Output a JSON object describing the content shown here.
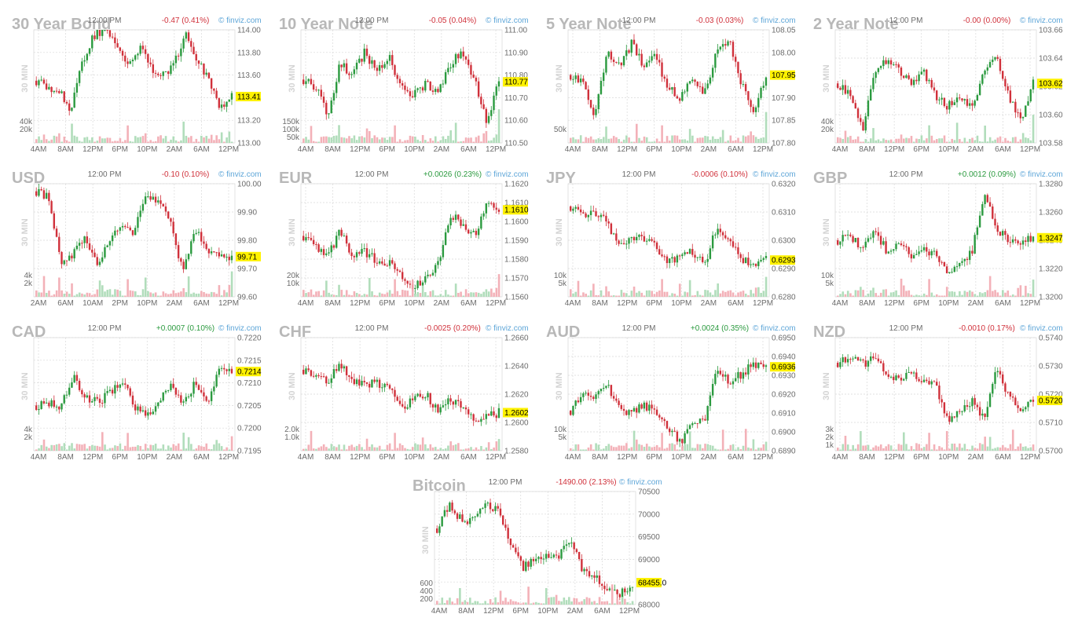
{
  "colors": {
    "up": "#2b9a3f",
    "down": "#d0313b",
    "price_bg": "#fff200",
    "grid": "#d9d9d9",
    "vol_up": "#a9d9b4",
    "vol_down": "#f2a9b0",
    "brand": "#5ea6d8"
  },
  "chart_data": [
    {
      "type": "candlestick",
      "title": "30 Year Bond",
      "side_label": "30 MIN",
      "time_label": "12:00 PM",
      "change": "-0.47 (0.41%)",
      "change_dir": "down",
      "price": "113.41",
      "last": 113.41,
      "brand": "© finviz.com",
      "yticks": [
        "114.00",
        "113.80",
        "113.60",
        "113.40",
        "113.20",
        "113.00"
      ],
      "ylim": [
        113.0,
        114.0
      ],
      "vol_ticks": [
        "40k",
        "20k"
      ],
      "vol_tick_rows": [
        0,
        1
      ],
      "xticks": [
        "4AM",
        "8AM",
        "12PM",
        "6PM",
        "10PM",
        "2AM",
        "6AM",
        "12PM"
      ],
      "path": [
        113.55,
        113.5,
        113.45,
        113.3,
        113.7,
        113.95,
        114.0,
        113.85,
        113.7,
        113.85,
        113.65,
        113.6,
        113.7,
        113.95,
        113.75,
        113.55,
        113.3,
        113.41
      ]
    },
    {
      "type": "candlestick",
      "title": "10 Year Note",
      "side_label": "30 MIN",
      "time_label": "12:00 PM",
      "change": "-0.05 (0.04%)",
      "change_dir": "down",
      "price": "110.77",
      "last": 110.77,
      "brand": "© finviz.com",
      "yticks": [
        "111.00",
        "110.90",
        "110.80",
        "110.70",
        "110.60",
        "110.50"
      ],
      "ylim": [
        110.5,
        111.0
      ],
      "vol_ticks": [
        "150k",
        "100k",
        "50k"
      ],
      "vol_tick_rows": [
        0,
        1,
        2
      ],
      "xticks": [
        "4AM",
        "8AM",
        "12PM",
        "6PM",
        "10PM",
        "2AM",
        "6AM",
        "12PM"
      ],
      "path": [
        110.78,
        110.75,
        110.62,
        110.85,
        110.8,
        110.9,
        110.82,
        110.88,
        110.74,
        110.72,
        110.76,
        110.73,
        110.85,
        110.9,
        110.78,
        110.6,
        110.77
      ]
    },
    {
      "type": "candlestick",
      "title": "5 Year Note",
      "side_label": "30 MIN",
      "time_label": "12:00 PM",
      "change": "-0.03 (0.03%)",
      "change_dir": "down",
      "price": "107.95",
      "last": 107.95,
      "brand": "© finviz.com",
      "yticks": [
        "108.05",
        "108.00",
        "107.95",
        "107.90",
        "107.85",
        "107.80"
      ],
      "ylim": [
        107.8,
        108.05
      ],
      "vol_ticks": [
        "50k"
      ],
      "vol_tick_rows": [
        1
      ],
      "xticks": [
        "4AM",
        "8AM",
        "12PM",
        "6PM",
        "10PM",
        "2AM",
        "6AM",
        "12PM"
      ],
      "path": [
        107.95,
        107.93,
        107.86,
        108.0,
        107.97,
        108.02,
        107.97,
        107.99,
        107.92,
        107.9,
        107.94,
        107.91,
        108.01,
        108.03,
        107.93,
        107.86,
        107.95
      ]
    },
    {
      "type": "candlestick",
      "title": "2 Year Note",
      "side_label": "30 MIN",
      "time_label": "12:00 PM",
      "change": "-0.00 (0.00%)",
      "change_dir": "down",
      "price": "103.62",
      "last": 103.62,
      "brand": "© finviz.com",
      "yticks": [
        "103.66",
        "103.64",
        "103.62",
        "103.60",
        "103.58"
      ],
      "ylim": [
        103.57,
        103.665
      ],
      "vol_ticks": [
        "40k",
        "20k"
      ],
      "vol_tick_rows": [
        0,
        1
      ],
      "xticks": [
        "4AM",
        "8AM",
        "12PM",
        "6PM",
        "10PM",
        "2AM",
        "6AM",
        "12PM"
      ],
      "path": [
        103.62,
        103.61,
        103.58,
        103.63,
        103.64,
        103.63,
        103.62,
        103.63,
        103.61,
        103.6,
        103.61,
        103.6,
        103.63,
        103.64,
        103.61,
        103.59,
        103.62
      ]
    },
    {
      "type": "candlestick",
      "title": "USD",
      "side_label": "30 MIN",
      "time_label": "12:00 PM",
      "change": "-0.10 (0.10%)",
      "change_dir": "down",
      "price": "99.71",
      "last": 99.71,
      "brand": "© finviz.com",
      "yticks": [
        "100.00",
        "99.90",
        "99.80",
        "99.70",
        "99.60"
      ],
      "ylim": [
        99.55,
        100.0
      ],
      "vol_ticks": [
        "4k",
        "2k"
      ],
      "vol_tick_rows": [
        0,
        1
      ],
      "xticks": [
        "2AM",
        "6AM",
        "10AM",
        "2PM",
        "10PM",
        "2AM",
        "6AM",
        "12PM"
      ],
      "path": [
        99.97,
        99.95,
        99.68,
        99.72,
        99.8,
        99.66,
        99.78,
        99.84,
        99.8,
        99.97,
        99.92,
        99.86,
        99.64,
        99.82,
        99.74,
        99.72,
        99.71
      ]
    },
    {
      "type": "candlestick",
      "title": "EUR",
      "side_label": "30 MIN",
      "time_label": "12:00 PM",
      "change": "+0.0026 (0.23%)",
      "change_dir": "up",
      "price": "1.1610",
      "last": 1.161,
      "brand": "© finviz.com",
      "yticks": [
        "1.1620",
        "1.1610",
        "1.1600",
        "1.1590",
        "1.1580",
        "1.1570",
        "1.1560"
      ],
      "ylim": [
        1.156,
        1.1625
      ],
      "vol_ticks": [
        "20k",
        "10k"
      ],
      "vol_tick_rows": [
        0,
        1
      ],
      "xticks": [
        "4AM",
        "8AM",
        "12PM",
        "6PM",
        "10PM",
        "2AM",
        "6AM",
        "12PM"
      ],
      "path": [
        1.1595,
        1.1588,
        1.1583,
        1.1598,
        1.1582,
        1.1586,
        1.1581,
        1.158,
        1.1572,
        1.1565,
        1.1572,
        1.1578,
        1.1608,
        1.1602,
        1.1595,
        1.1612,
        1.161
      ]
    },
    {
      "type": "candlestick",
      "title": "JPY",
      "side_label": "30 MIN",
      "time_label": "12:00 PM",
      "change": "-0.0006 (0.10%)",
      "change_dir": "down",
      "price": "0.6293",
      "last": 0.6293,
      "brand": "© finviz.com",
      "yticks": [
        "0.6320",
        "0.6310",
        "0.6300",
        "0.6290",
        "0.6280"
      ],
      "ylim": [
        0.628,
        0.632
      ],
      "vol_ticks": [
        "10k",
        "5k"
      ],
      "vol_tick_rows": [
        0,
        1
      ],
      "xticks": [
        "4AM",
        "8AM",
        "12PM",
        "6PM",
        "10PM",
        "2AM",
        "6AM",
        "12PM"
      ],
      "path": [
        0.6312,
        0.6309,
        0.631,
        0.6306,
        0.6297,
        0.63,
        0.6301,
        0.6298,
        0.6292,
        0.6295,
        0.6296,
        0.6292,
        0.6305,
        0.6299,
        0.6293,
        0.6291,
        0.6293
      ]
    },
    {
      "type": "candlestick",
      "title": "GBP",
      "side_label": "30 MIN",
      "time_label": "12:00 PM",
      "change": "+0.0012 (0.09%)",
      "change_dir": "up",
      "price": "1.3247",
      "last": 1.3247,
      "brand": "© finviz.com",
      "yticks": [
        "1.3280",
        "1.3260",
        "1.3240",
        "1.3220",
        "1.3200"
      ],
      "ylim": [
        1.32,
        1.329
      ],
      "vol_ticks": [
        "10k",
        "5k"
      ],
      "vol_tick_rows": [
        0,
        1
      ],
      "xticks": [
        "4AM",
        "8AM",
        "12PM",
        "6PM",
        "10PM",
        "2AM",
        "6AM",
        "12PM"
      ],
      "path": [
        1.3245,
        1.325,
        1.3238,
        1.3255,
        1.3236,
        1.324,
        1.3234,
        1.3238,
        1.3234,
        1.3218,
        1.3225,
        1.3236,
        1.3282,
        1.3255,
        1.3245,
        1.3242,
        1.3247
      ]
    },
    {
      "type": "candlestick",
      "title": "CAD",
      "side_label": "30 MIN",
      "time_label": "12:00 PM",
      "change": "+0.0007 (0.10%)",
      "change_dir": "up",
      "price": "0.7214",
      "last": 0.7214,
      "brand": "© finviz.com",
      "yticks": [
        "0.7220",
        "0.7215",
        "0.7210",
        "0.7205",
        "0.7200",
        "0.7195"
      ],
      "ylim": [
        0.7193,
        0.7223
      ],
      "vol_ticks": [
        "4k",
        "2k"
      ],
      "vol_tick_rows": [
        0,
        1
      ],
      "xticks": [
        "4AM",
        "8AM",
        "12PM",
        "6PM",
        "10PM",
        "2AM",
        "6AM",
        "12PM"
      ],
      "path": [
        0.7205,
        0.7206,
        0.7204,
        0.7213,
        0.7207,
        0.7206,
        0.7208,
        0.7212,
        0.7205,
        0.7202,
        0.7206,
        0.721,
        0.7205,
        0.7211,
        0.7205,
        0.7216,
        0.7214
      ]
    },
    {
      "type": "candlestick",
      "title": "CHF",
      "side_label": "30 MIN",
      "time_label": "12:00 PM",
      "change": "-0.0025 (0.20%)",
      "change_dir": "down",
      "price": "1.2602",
      "last": 1.2602,
      "brand": "© finviz.com",
      "yticks": [
        "1.2660",
        "1.2640",
        "1.2620",
        "1.2600",
        "1.2580"
      ],
      "ylim": [
        1.257,
        1.2665
      ],
      "vol_ticks": [
        "2.0k",
        "1.0k"
      ],
      "vol_tick_rows": [
        0,
        1
      ],
      "xticks": [
        "4AM",
        "8AM",
        "12PM",
        "6PM",
        "10PM",
        "2AM",
        "6AM",
        "12PM"
      ],
      "path": [
        1.2638,
        1.2632,
        1.2628,
        1.2642,
        1.2628,
        1.2625,
        1.2627,
        1.2622,
        1.2605,
        1.2612,
        1.2618,
        1.2602,
        1.2615,
        1.2605,
        1.2595,
        1.2598,
        1.2602
      ]
    },
    {
      "type": "candlestick",
      "title": "AUD",
      "side_label": "30 MIN",
      "time_label": "12:00 PM",
      "change": "+0.0024 (0.35%)",
      "change_dir": "up",
      "price": "0.6936",
      "last": 0.6936,
      "brand": "© finviz.com",
      "yticks": [
        "0.6950",
        "0.6940",
        "0.6930",
        "0.6920",
        "0.6910",
        "0.6900",
        "0.6890"
      ],
      "ylim": [
        0.689,
        0.6952
      ],
      "vol_ticks": [
        "10k",
        "5k"
      ],
      "vol_tick_rows": [
        0,
        1
      ],
      "xticks": [
        "4AM",
        "8AM",
        "12PM",
        "6PM",
        "10PM",
        "2AM",
        "6AM",
        "12PM"
      ],
      "path": [
        0.6912,
        0.6922,
        0.692,
        0.6926,
        0.6912,
        0.691,
        0.6915,
        0.6912,
        0.6902,
        0.6895,
        0.6904,
        0.6908,
        0.6935,
        0.6928,
        0.6932,
        0.6938,
        0.6936
      ]
    },
    {
      "type": "candlestick",
      "title": "NZD",
      "side_label": "30 MIN",
      "time_label": "12:00 PM",
      "change": "-0.0010 (0.17%)",
      "change_dir": "down",
      "price": "0.5720",
      "last": 0.572,
      "brand": "© finviz.com",
      "yticks": [
        "0.5740",
        "0.5730",
        "0.5720",
        "0.5710",
        "0.5700"
      ],
      "ylim": [
        0.57,
        0.5745
      ],
      "vol_ticks": [
        "3k",
        "2k",
        "1k"
      ],
      "vol_tick_rows": [
        0,
        1,
        2
      ],
      "xticks": [
        "4AM",
        "8AM",
        "12PM",
        "6PM",
        "10PM",
        "2AM",
        "6AM",
        "12PM"
      ],
      "path": [
        0.5735,
        0.5738,
        0.5734,
        0.5738,
        0.5731,
        0.5728,
        0.573,
        0.5728,
        0.5726,
        0.5712,
        0.5716,
        0.572,
        0.5712,
        0.5733,
        0.5722,
        0.5716,
        0.572
      ]
    },
    {
      "type": "candlestick",
      "title": "Bitcoin",
      "side_label": "30 MIN",
      "time_label": "12:00 PM",
      "change": "-1490.00 (2.13%)",
      "change_dir": "down",
      "price": "68455.0",
      "last": 68455.0,
      "brand": "© finviz.com",
      "yticks": [
        "70500",
        "70000",
        "69500",
        "69000",
        "68500",
        "68000"
      ],
      "ylim": [
        67950,
        70550
      ],
      "vol_ticks": [
        "600",
        "400",
        "200"
      ],
      "vol_tick_rows": [
        0,
        1,
        2
      ],
      "xticks": [
        "4AM",
        "8AM",
        "12PM",
        "6PM",
        "10PM",
        "2AM",
        "6AM",
        "12PM"
      ],
      "path": [
        69700,
        70250,
        69900,
        69850,
        70300,
        70100,
        69300,
        68800,
        69000,
        69050,
        69100,
        69400,
        68700,
        68600,
        68300,
        68200,
        68455
      ]
    }
  ]
}
